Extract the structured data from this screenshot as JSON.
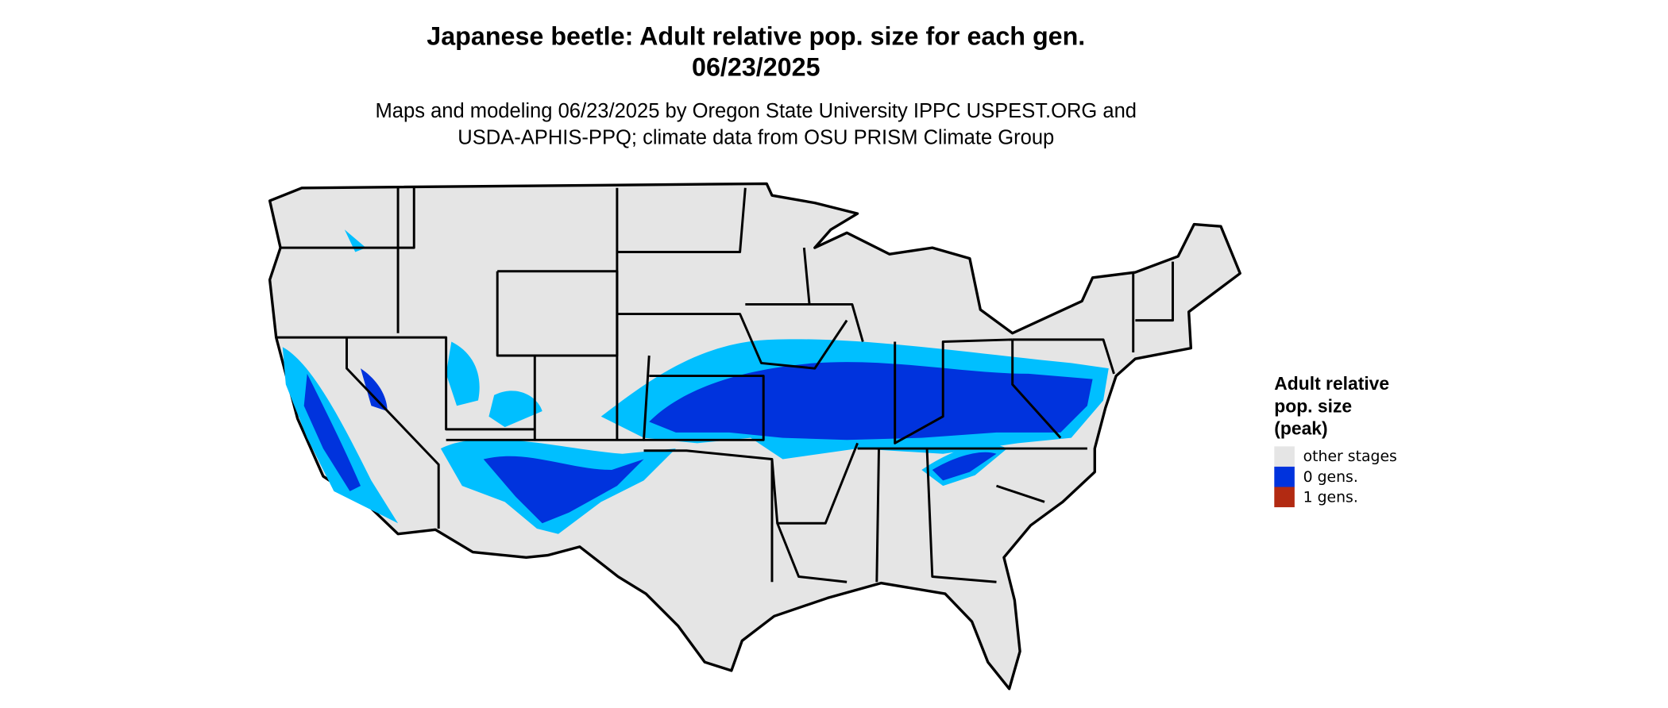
{
  "title": [
    "Japanese beetle: Adult relative pop. size for each gen.",
    "06/23/2025"
  ],
  "subtitle": [
    "Maps and modeling 06/23/2025 by Oregon State University IPPC USPEST.ORG and",
    "USDA-APHIS-PPQ; climate data from OSU PRISM Climate Group"
  ],
  "legend": {
    "title": [
      "Adult relative",
      "pop. size",
      "(peak)"
    ],
    "items": [
      {
        "label": "other stages",
        "color": "#e5e5e5"
      },
      {
        "label": "0 gens.",
        "color": "#0033dd"
      },
      {
        "label": "1 gens.",
        "color": "#b22a12"
      }
    ]
  }
}
